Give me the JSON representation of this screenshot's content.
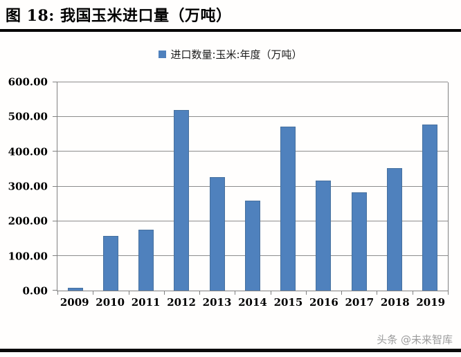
{
  "header": {
    "title": "图 18:  我国玉米进口量（万吨）"
  },
  "footer": {
    "watermark": "头条 @未来智库"
  },
  "colors": {
    "bar_fill": "#4F81BD",
    "bar_border": "#46709e",
    "axis": "#808080",
    "gridline": "#8c8c8c",
    "title_rule": "#000000",
    "watermark_text": "#9b9b9b"
  },
  "chart_data": {
    "type": "bar",
    "title": "图 18:  我国玉米进口量（万吨）",
    "legend": "进口数量:玉米:年度（万吨）",
    "legend_position": "top-center",
    "legend_marker": "blue-square-icon",
    "categories": [
      "2009",
      "2010",
      "2011",
      "2012",
      "2013",
      "2014",
      "2015",
      "2016",
      "2017",
      "2018",
      "2019"
    ],
    "values": [
      8,
      157,
      175,
      521,
      327,
      260,
      473,
      317,
      283,
      352,
      479
    ],
    "xlabel": "",
    "ylabel": "",
    "ylim": [
      0,
      600
    ],
    "yticks": [
      0,
      100,
      200,
      300,
      400,
      500,
      600
    ],
    "ytick_labels": [
      "0.00",
      "100.00",
      "200.00",
      "300.00",
      "400.00",
      "500.00",
      "600.00"
    ],
    "grid": true,
    "bar_color": "#4F81BD"
  }
}
